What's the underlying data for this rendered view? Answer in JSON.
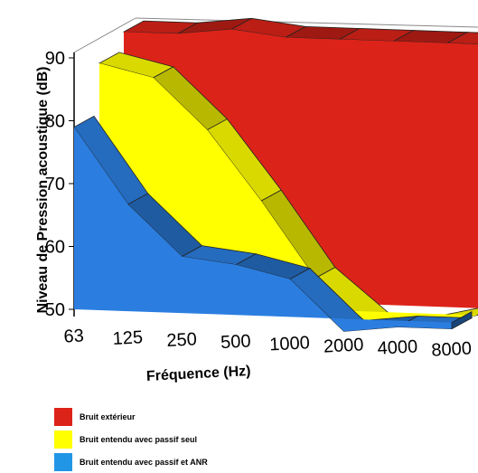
{
  "chart_data": {
    "type": "area",
    "view": "3d-stacked-area",
    "xlabel": "Fréquence (Hz)",
    "ylabel": "Niveau de Pression acoustique (dB)",
    "categories": [
      "63",
      "125",
      "250",
      "500",
      "1000",
      "2000",
      "4000",
      "8000"
    ],
    "yticks": [
      50,
      60,
      70,
      80,
      90
    ],
    "ylim": [
      48,
      95
    ],
    "grid": false,
    "legend_position": "bottom-left",
    "series": [
      {
        "name": "Bruit extérieur",
        "color": "#dc2319",
        "values": [
          92,
          92,
          93,
          92,
          92,
          92,
          92,
          92
        ]
      },
      {
        "name": "Bruit entendu avec passif seul",
        "color": "#ffff00",
        "values": [
          88,
          86,
          78,
          67,
          55,
          48,
          48,
          50
        ]
      },
      {
        "name": "Bruit entendu avec passif et ANR",
        "color": "#2b7ee0",
        "values": [
          79,
          67,
          59,
          58,
          56,
          48,
          49,
          49
        ]
      }
    ]
  }
}
